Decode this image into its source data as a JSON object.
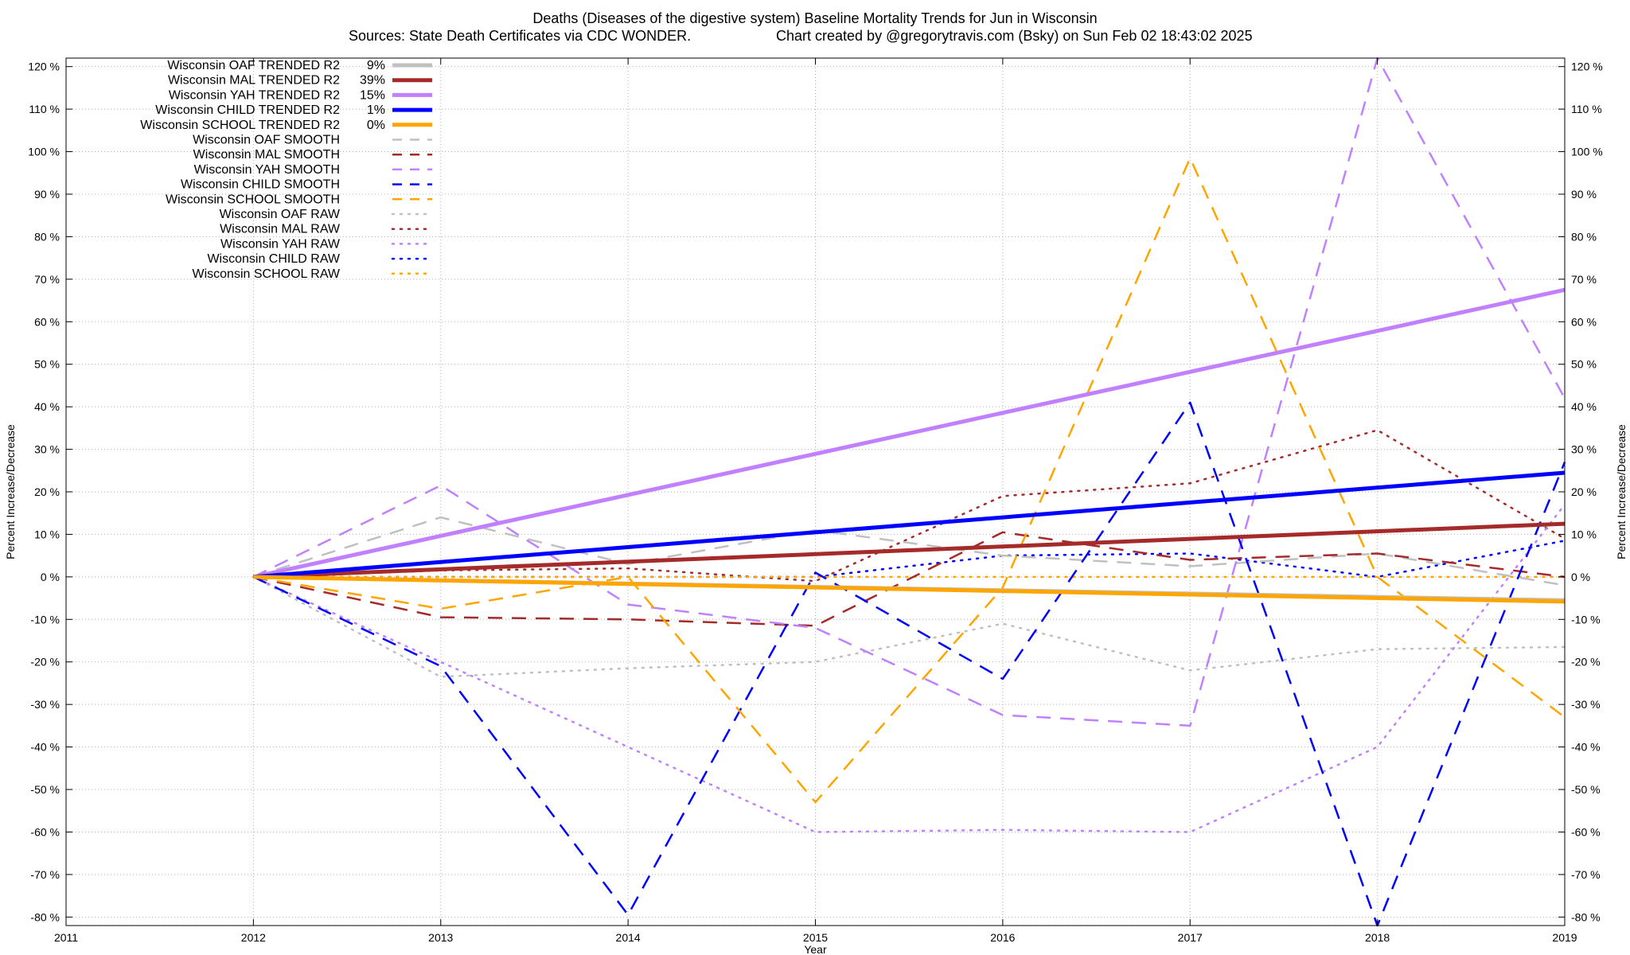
{
  "page": {
    "title": "Deaths (Diseases of the digestive system)  Baseline Mortality Trends for Jun in Wisconsin",
    "source": "Sources: State Death Certificates via CDC WONDER.",
    "credit": "Chart created by @gregorytravis.com (Bsky) on Sun Feb 02 18:43:02 2025"
  },
  "colors": {
    "OAF": "#c0c0c0",
    "MAL": "#a52a2a",
    "YAH": "#c080ff",
    "CHILD": "#0000ff",
    "SCHOOL": "#ffa500"
  },
  "chart_data": {
    "type": "line",
    "title": "Deaths (Diseases of the digestive system)  Baseline Mortality Trends for Jun in Wisconsin",
    "xlabel": "Year",
    "ylabel": "Percent Increase/Decrease",
    "y2label": "Percent Increase/Decrease",
    "xlim": [
      2011,
      2019
    ],
    "ylim": [
      -82,
      122
    ],
    "x_ticks": [
      "2011",
      "2012",
      "2013",
      "2014",
      "2015",
      "2016",
      "2017",
      "2018",
      "2019"
    ],
    "y_ticks": [
      "-80 %",
      "-70 %",
      "-60 %",
      "-50 %",
      "-40 %",
      "-30 %",
      "-20 %",
      "-10 %",
      "0 %",
      "10 %",
      "20 %",
      "30 %",
      "40 %",
      "50 %",
      "60 %",
      "70 %",
      "80 %",
      "90 %",
      "100 %",
      "110 %",
      "120 %"
    ],
    "grid": true,
    "legend_position": "top-left",
    "series": [
      {
        "name": "Wisconsin OAF TRENDED R2",
        "r2": "9%",
        "group": "OAF",
        "style": "solid",
        "x": [
          2012,
          2019
        ],
        "y": [
          0,
          -5.5
        ]
      },
      {
        "name": "Wisconsin MAL TRENDED R2",
        "r2": "39%",
        "group": "MAL",
        "style": "solid",
        "x": [
          2012,
          2019
        ],
        "y": [
          0,
          12.5
        ]
      },
      {
        "name": "Wisconsin YAH TRENDED R2",
        "r2": "15%",
        "group": "YAH",
        "style": "solid",
        "x": [
          2012,
          2019
        ],
        "y": [
          0,
          67.5
        ]
      },
      {
        "name": "Wisconsin CHILD TRENDED R2",
        "r2": "1%",
        "group": "CHILD",
        "style": "solid",
        "x": [
          2012,
          2019
        ],
        "y": [
          0,
          24.5
        ]
      },
      {
        "name": "Wisconsin SCHOOL TRENDED R2",
        "r2": "0%",
        "group": "SCHOOL",
        "style": "solid",
        "x": [
          2012,
          2019
        ],
        "y": [
          0,
          -5.8
        ]
      },
      {
        "name": "Wisconsin OAF SMOOTH",
        "r2": "",
        "group": "OAF",
        "style": "dashed",
        "x": [
          2012,
          2013,
          2014,
          2015,
          2016,
          2017,
          2018,
          2019
        ],
        "y": [
          0,
          14,
          3,
          11,
          5,
          2.5,
          5.5,
          -2
        ]
      },
      {
        "name": "Wisconsin MAL SMOOTH",
        "r2": "",
        "group": "MAL",
        "style": "dashed",
        "x": [
          2012,
          2013,
          2014,
          2015,
          2016,
          2017,
          2018,
          2019
        ],
        "y": [
          0,
          -9.5,
          -10,
          -11.5,
          10.5,
          4,
          5.5,
          0
        ]
      },
      {
        "name": "Wisconsin YAH SMOOTH",
        "r2": "",
        "group": "YAH",
        "style": "dashed",
        "x": [
          2012,
          2013,
          2014,
          2015,
          2016,
          2017,
          2018,
          2019
        ],
        "y": [
          0,
          21.5,
          -6.5,
          -12,
          -32.5,
          -35,
          122,
          42
        ]
      },
      {
        "name": "Wisconsin CHILD SMOOTH",
        "r2": "",
        "group": "CHILD",
        "style": "dashed",
        "x": [
          2012,
          2013,
          2014,
          2015,
          2016,
          2017,
          2018,
          2019
        ],
        "y": [
          0,
          -21,
          -79.5,
          1,
          -24,
          41,
          -82,
          27
        ]
      },
      {
        "name": "Wisconsin SCHOOL SMOOTH",
        "r2": "",
        "group": "SCHOOL",
        "style": "dashed",
        "x": [
          2012,
          2013,
          2014,
          2015,
          2016,
          2017,
          2018,
          2019
        ],
        "y": [
          0,
          -7.5,
          0,
          -53,
          -2.5,
          98.5,
          0,
          -33
        ]
      },
      {
        "name": "Wisconsin OAF RAW",
        "r2": "",
        "group": "OAF",
        "style": "dotted",
        "x": [
          2012,
          2013,
          2014,
          2015,
          2016,
          2017,
          2018,
          2019
        ],
        "y": [
          0,
          -23.5,
          -21.5,
          -20,
          -11,
          -22,
          -17,
          -16.5
        ]
      },
      {
        "name": "Wisconsin MAL RAW",
        "r2": "",
        "group": "MAL",
        "style": "dotted",
        "x": [
          2012,
          2013,
          2014,
          2015,
          2016,
          2017,
          2018,
          2019
        ],
        "y": [
          0,
          1.5,
          2,
          -1,
          19,
          22,
          34.5,
          9
        ]
      },
      {
        "name": "Wisconsin YAH RAW",
        "r2": "",
        "group": "YAH",
        "style": "dotted",
        "x": [
          2012,
          2013,
          2014,
          2015,
          2016,
          2017,
          2018,
          2019
        ],
        "y": [
          0,
          -20,
          -40,
          -60,
          -59.5,
          -60,
          -40,
          17
        ]
      },
      {
        "name": "Wisconsin CHILD RAW",
        "r2": "",
        "group": "CHILD",
        "style": "dotted",
        "x": [
          2012,
          2013,
          2014,
          2015,
          2016,
          2017,
          2018,
          2019
        ],
        "y": [
          0,
          0,
          0,
          0,
          5,
          5.5,
          0,
          8.5
        ]
      },
      {
        "name": "Wisconsin SCHOOL RAW",
        "r2": "",
        "group": "SCHOOL",
        "style": "dotted",
        "x": [
          2012,
          2013,
          2014,
          2015,
          2016,
          2017,
          2018,
          2019
        ],
        "y": [
          0,
          0,
          0,
          0,
          0,
          0,
          0,
          0
        ]
      }
    ]
  }
}
